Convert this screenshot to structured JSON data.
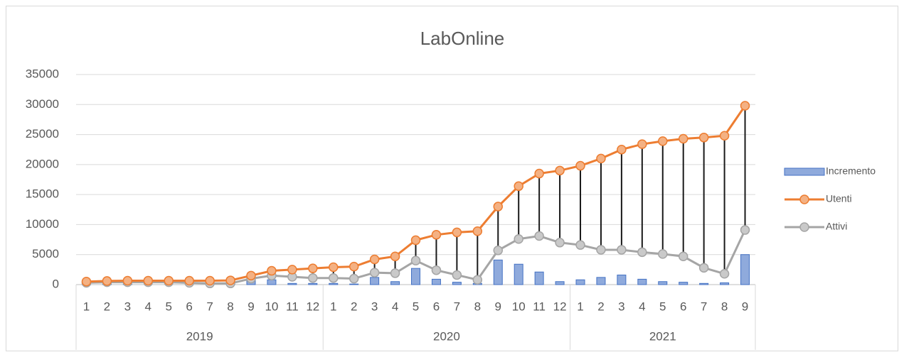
{
  "chart_data": {
    "type": "combo",
    "title": "LabOnline",
    "categories": [
      "1",
      "2",
      "3",
      "4",
      "5",
      "6",
      "7",
      "8",
      "9",
      "10",
      "11",
      "12",
      "1",
      "2",
      "3",
      "4",
      "5",
      "6",
      "7",
      "8",
      "9",
      "10",
      "11",
      "12",
      "1",
      "2",
      "3",
      "4",
      "5",
      "6",
      "7",
      "8",
      "9"
    ],
    "category_groups": [
      {
        "label": "2019",
        "size": 12
      },
      {
        "label": "2020",
        "size": 12
      },
      {
        "label": "2021",
        "size": 9
      }
    ],
    "series": [
      {
        "name": "Incremento",
        "kind": "bar",
        "color": "#8faadc",
        "edge": "#4472c4",
        "values": [
          500,
          100,
          50,
          0,
          0,
          0,
          0,
          50,
          800,
          800,
          200,
          200,
          200,
          100,
          1200,
          500,
          2700,
          900,
          400,
          200,
          4100,
          3400,
          2100,
          500,
          800,
          1200,
          1600,
          900,
          500,
          400,
          200,
          300,
          5000
        ]
      },
      {
        "name": "Utenti",
        "kind": "line",
        "color": "#ed7d31",
        "marker_fill": "#f4b183",
        "values": [
          500,
          600,
          650,
          650,
          650,
          650,
          650,
          700,
          1500,
          2300,
          2500,
          2700,
          2900,
          3000,
          4200,
          4700,
          7400,
          8300,
          8700,
          8900,
          13000,
          16400,
          18500,
          19000,
          19800,
          21000,
          22500,
          23400,
          23900,
          24300,
          24500,
          24800,
          29800
        ]
      },
      {
        "name": "Attivi",
        "kind": "line",
        "color": "#a5a5a5",
        "marker_fill": "#c9c9c9",
        "values": [
          300,
          400,
          400,
          400,
          400,
          300,
          200,
          200,
          1000,
          1500,
          1300,
          1100,
          1100,
          1000,
          2000,
          1900,
          4000,
          2400,
          1600,
          800,
          5700,
          7600,
          8100,
          7000,
          6600,
          5800,
          5800,
          5400,
          5100,
          4700,
          2800,
          1800,
          9100
        ]
      }
    ],
    "ylim": [
      0,
      35000
    ],
    "yticks": [
      0,
      5000,
      10000,
      15000,
      20000,
      25000,
      30000,
      35000
    ],
    "grid": true,
    "high_low_lines": true,
    "legend": "right"
  }
}
